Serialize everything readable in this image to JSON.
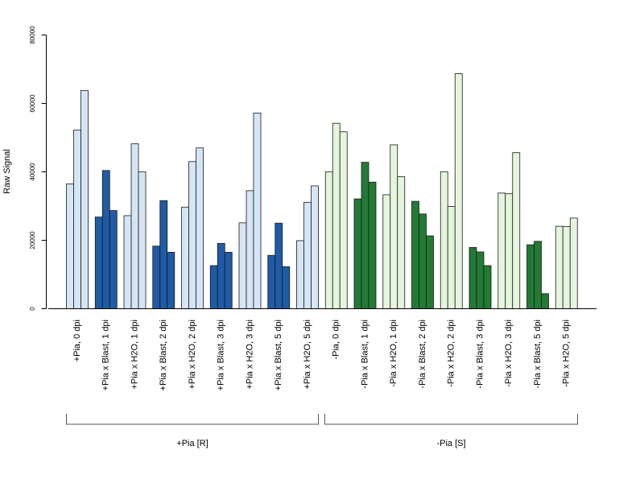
{
  "chart_data": {
    "type": "bar",
    "ylabel": "Raw Signal",
    "xlabel": "",
    "ylim": [
      0,
      80000
    ],
    "yticks": [
      0,
      20000,
      40000,
      60000,
      80000
    ],
    "grid": false,
    "categories": [
      "+Pia, 0 dpi",
      "+Pia x Blast, 1 dpi",
      "+Pia x H2O, 1 dpi",
      "+Pia x Blast, 2 dpi",
      "+Pia x H2O, 2 dpi",
      "+Pia x Blast, 3 dpi",
      "+Pia x H2O, 3 dpi",
      "+Pia x Blast, 5 dpi",
      "+Pia x H2O, 5 dpi",
      "-Pia, 0 dpi",
      "-Pia x Blast, 1 dpi",
      "-Pia x H2O, 1 dpi",
      "-Pia x Blast, 2 dpi",
      "-Pia x H2O, 2 dpi",
      "-Pia x Blast, 3 dpi",
      "-Pia x H2O, 3 dpi",
      "-Pia x Blast, 5 dpi",
      "-Pia x H2O, 5 dpi"
    ],
    "replicates": [
      [
        36500,
        52200,
        63800
      ],
      [
        26800,
        40400,
        28700
      ],
      [
        27200,
        48200,
        40000
      ],
      [
        18300,
        31600,
        16500
      ],
      [
        29700,
        43000,
        47000
      ],
      [
        12600,
        19100,
        16500
      ],
      [
        25100,
        34500,
        57200
      ],
      [
        15600,
        25000,
        12300
      ],
      [
        19900,
        31100,
        35900
      ],
      [
        40000,
        54200,
        51700
      ],
      [
        32100,
        42800,
        37000
      ],
      [
        33300,
        47900,
        38600
      ],
      [
        31400,
        27700,
        21300
      ],
      [
        40000,
        29900,
        68700
      ],
      [
        17900,
        16600,
        12600
      ],
      [
        33800,
        33600,
        45600
      ],
      [
        18700,
        19700,
        4400
      ],
      [
        24100,
        24000,
        26500
      ]
    ],
    "bar_colors": [
      "#d6e5f5",
      "#1f5ba6",
      "#d6e5f5",
      "#1f5ba6",
      "#d6e5f5",
      "#1f5ba6",
      "#d6e5f5",
      "#1f5ba6",
      "#d6e5f5",
      "#e5f5dd",
      "#237a35",
      "#e5f5dd",
      "#237a35",
      "#e5f5dd",
      "#237a35",
      "#e5f5dd",
      "#237a35",
      "#e5f5dd"
    ],
    "groups": [
      {
        "label": "+Pia [R]",
        "from": 0,
        "to": 8
      },
      {
        "label": "-Pia [S]",
        "from": 9,
        "to": 17
      }
    ]
  }
}
